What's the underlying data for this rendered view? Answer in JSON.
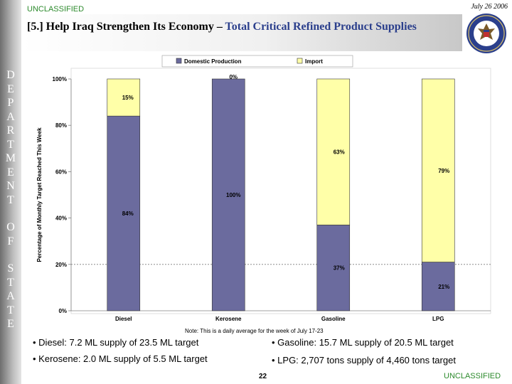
{
  "header": {
    "classification": "UNCLASSIFIED",
    "date": "July 26 2006",
    "title_number": "[5.]",
    "title_main": "Help Iraq Strengthen Its Economy",
    "title_dash": "–",
    "title_highlight": "Total Critical Refined Product Supplies"
  },
  "sidebar": {
    "letters": [
      "D",
      "E",
      "P",
      "A",
      "R",
      "T",
      "M",
      "E",
      "N",
      "T",
      "O",
      "F",
      "S",
      "T",
      "A",
      "T",
      "E"
    ]
  },
  "chart_data": {
    "type": "bar",
    "stacked": true,
    "title": "",
    "xlabel": "",
    "ylabel": "Percentage of Monthly Target Reached This Week",
    "ylim": [
      0,
      100
    ],
    "yticks": [
      0,
      20,
      40,
      60,
      80,
      100
    ],
    "ytick_labels": [
      "0%",
      "20%",
      "40%",
      "60%",
      "80%",
      "100%"
    ],
    "reference_line": 20,
    "legend_position": "top-center",
    "categories": [
      "Diesel",
      "Kerosene",
      "Gasoline",
      "LPG"
    ],
    "series": [
      {
        "name": "Domestic Production",
        "color": "#6b6b9e",
        "values": [
          84,
          100,
          37,
          21
        ],
        "labels": [
          "84%",
          "100%",
          "37%",
          "21%"
        ]
      },
      {
        "name": "Import",
        "color": "#ffffa8",
        "values": [
          15,
          0,
          63,
          79
        ],
        "labels": [
          "15%",
          "0%",
          "63%",
          "79%"
        ]
      }
    ]
  },
  "note": "Note: This is a daily average for the week of July 17-23",
  "bullets": {
    "diesel": "• Diesel: 7.2 ML supply of 23.5 ML target",
    "kerosene": "• Kerosene: 2.0 ML supply of 5.5 ML target",
    "gasoline": "• Gasoline: 15.7 ML supply of 20.5 ML target",
    "lpg": "• LPG: 2,707 tons supply of 4,460 tons target"
  },
  "footer": {
    "page": "22",
    "classification": "UNCLASSIFIED"
  },
  "colors": {
    "domestic": "#6b6b9e",
    "import": "#ffffa8",
    "classification": "#2c8a2c",
    "title_highlight": "#2b3f8c"
  }
}
